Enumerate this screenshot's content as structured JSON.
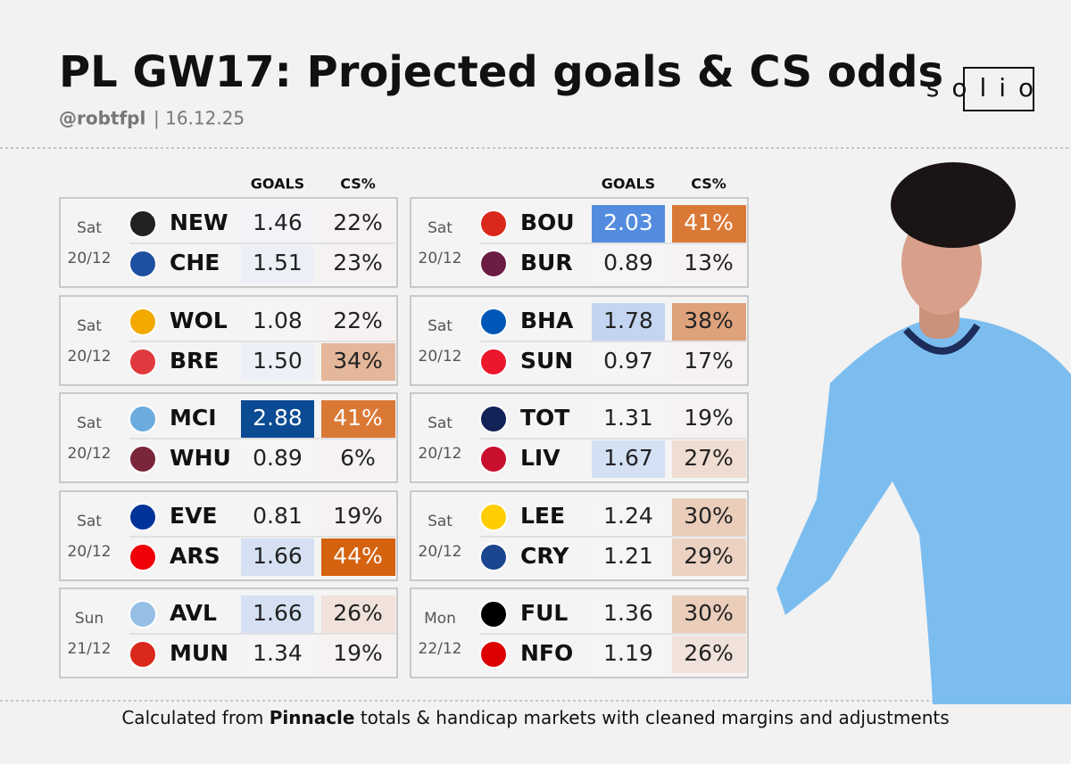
{
  "header": {
    "title": "PL GW17: Projected goals & CS odds",
    "handle": "@robtfpl",
    "date": "| 16.12.25",
    "logo": "solio"
  },
  "columns": {
    "goals": "GOALS",
    "cs": "CS%"
  },
  "tables": [
    {
      "matches": [
        {
          "day": "Sat",
          "date": "20/12",
          "teams": [
            {
              "team": "NEW",
              "goals": "1.46",
              "cs": "22%"
            },
            {
              "team": "CHE",
              "goals": "1.51",
              "cs": "23%"
            }
          ]
        },
        {
          "day": "Sat",
          "date": "20/12",
          "teams": [
            {
              "team": "WOL",
              "goals": "1.08",
              "cs": "22%"
            },
            {
              "team": "BRE",
              "goals": "1.50",
              "cs": "34%"
            }
          ]
        },
        {
          "day": "Sat",
          "date": "20/12",
          "teams": [
            {
              "team": "MCI",
              "goals": "2.88",
              "cs": "41%"
            },
            {
              "team": "WHU",
              "goals": "0.89",
              "cs": "6%"
            }
          ]
        },
        {
          "day": "Sat",
          "date": "20/12",
          "teams": [
            {
              "team": "EVE",
              "goals": "0.81",
              "cs": "19%"
            },
            {
              "team": "ARS",
              "goals": "1.66",
              "cs": "44%"
            }
          ]
        },
        {
          "day": "Sun",
          "date": "21/12",
          "teams": [
            {
              "team": "AVL",
              "goals": "1.66",
              "cs": "26%"
            },
            {
              "team": "MUN",
              "goals": "1.34",
              "cs": "19%"
            }
          ]
        }
      ]
    },
    {
      "matches": [
        {
          "day": "Sat",
          "date": "20/12",
          "teams": [
            {
              "team": "BOU",
              "goals": "2.03",
              "cs": "41%"
            },
            {
              "team": "BUR",
              "goals": "0.89",
              "cs": "13%"
            }
          ]
        },
        {
          "day": "Sat",
          "date": "20/12",
          "teams": [
            {
              "team": "BHA",
              "goals": "1.78",
              "cs": "38%"
            },
            {
              "team": "SUN",
              "goals": "0.97",
              "cs": "17%"
            }
          ]
        },
        {
          "day": "Sat",
          "date": "20/12",
          "teams": [
            {
              "team": "TOT",
              "goals": "1.31",
              "cs": "19%"
            },
            {
              "team": "LIV",
              "goals": "1.67",
              "cs": "27%"
            }
          ]
        },
        {
          "day": "Sat",
          "date": "20/12",
          "teams": [
            {
              "team": "LEE",
              "goals": "1.24",
              "cs": "30%"
            },
            {
              "team": "CRY",
              "goals": "1.21",
              "cs": "29%"
            }
          ]
        },
        {
          "day": "Mon",
          "date": "22/12",
          "teams": [
            {
              "team": "FUL",
              "goals": "1.36",
              "cs": "30%"
            },
            {
              "team": "NFO",
              "goals": "1.19",
              "cs": "26%"
            }
          ]
        }
      ]
    }
  ],
  "footer": {
    "prefix": "Calculated from",
    "bold": "Pinnacle",
    "suffix": "totals & handicap markets with cleaned margins and adjustments"
  }
}
